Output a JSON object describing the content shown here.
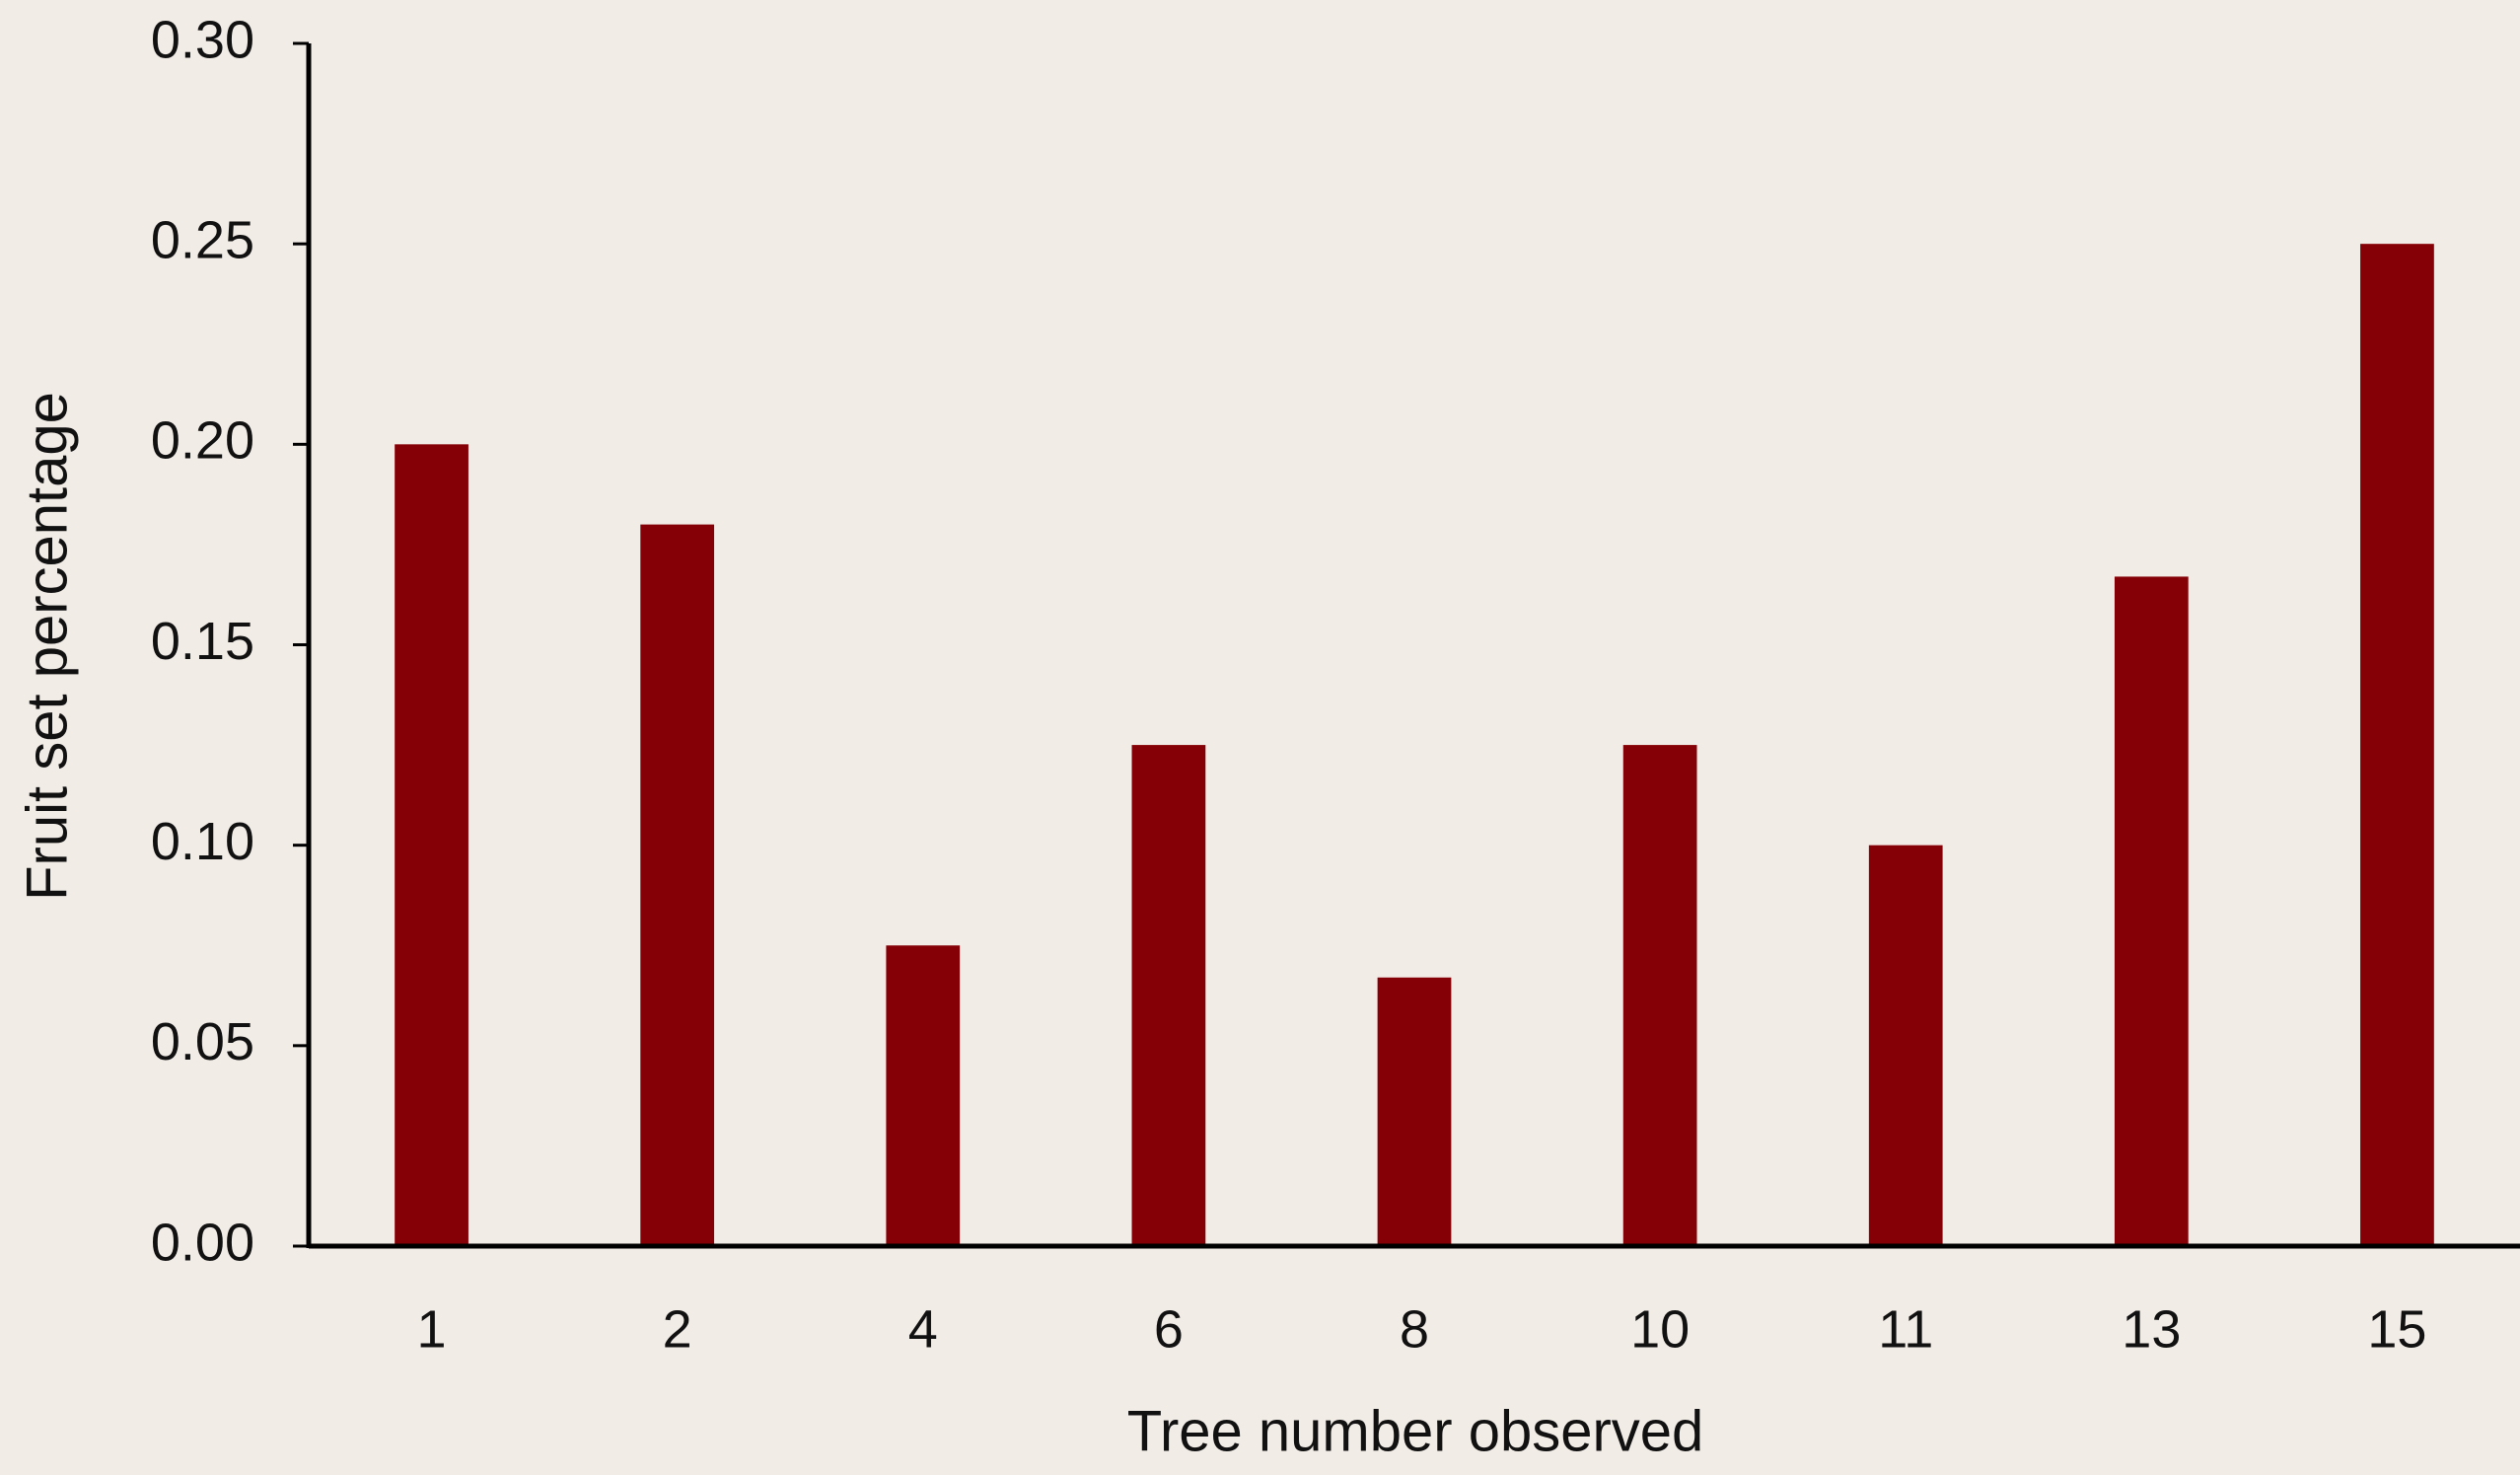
{
  "chart_data": {
    "type": "bar",
    "xlabel": "Tree number observed",
    "ylabel": "Fruit set percentage",
    "categories": [
      "1",
      "2",
      "4",
      "6",
      "8",
      "10",
      "11",
      "13",
      "15"
    ],
    "values": [
      0.2,
      0.18,
      0.075,
      0.125,
      0.067,
      0.125,
      0.1,
      0.167,
      0.25
    ],
    "color": "#850006",
    "ylim": [
      0,
      0.3
    ],
    "yticks": [
      {
        "value": 0,
        "label": "0.00"
      },
      {
        "value": 0.05,
        "label": "0.05"
      },
      {
        "value": 0.1,
        "label": "0.10"
      },
      {
        "value": 0.15,
        "label": "0.15"
      },
      {
        "value": 0.2,
        "label": "0.20"
      },
      {
        "value": 0.25,
        "label": "0.25"
      },
      {
        "value": 0.3,
        "label": "0.30"
      }
    ],
    "grid": false
  }
}
